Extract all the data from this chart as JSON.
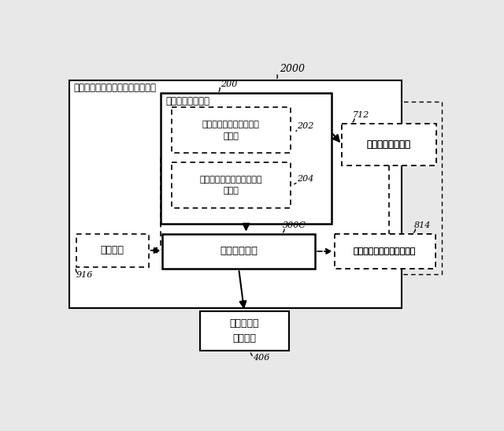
{
  "title_label": "2000",
  "outer_box_label": "ボリューム平準化器コントローラ",
  "audio_classifier_label": "オーディオ分類器",
  "audio_classifier_id": "200",
  "content_classifier_label": "オーディオ・コンテンツ\n分類器",
  "content_classifier_id": "202",
  "context_classifier_label": "オーディオ・コンテキスト\n分類器",
  "context_classifier_id": "204",
  "type_smoother_label": "型平滑化ユニット",
  "type_smoother_id": "712",
  "adjustment_label": "調整ユニット",
  "adjustment_id": "300C",
  "param_smoother_label": "パラメータ平滑化ユニット",
  "param_smoother_id": "814",
  "timer_label": "タイマー",
  "timer_box_id": "916",
  "volume_eq_label": "ボリューム\n平準化器",
  "volume_eq_id": "406",
  "bg_color": "#ffffff",
  "fig_bg": "#e8e8e8"
}
